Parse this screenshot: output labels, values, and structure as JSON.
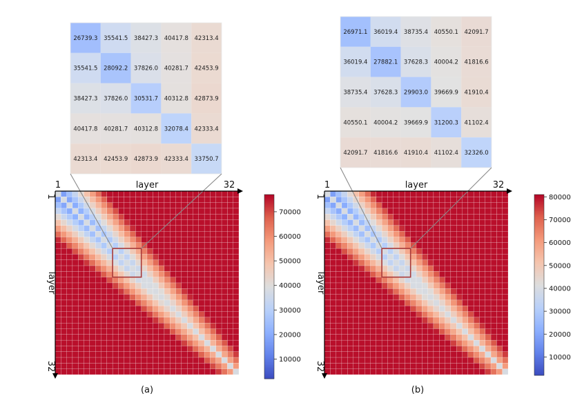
{
  "chart_data": [
    {
      "type": "heatmap",
      "caption": "(a)",
      "xlabel": "layer",
      "ylabel": "layer",
      "x_ticks": [
        "1",
        "32"
      ],
      "y_ticks": [
        "1",
        "32"
      ],
      "size": 32,
      "colormap": "coolwarm",
      "vmin": 2000,
      "vmax": 77000,
      "colorbar_ticks": [
        10000,
        20000,
        30000,
        40000,
        50000,
        60000,
        70000
      ],
      "zoom_range": [
        10,
        14
      ],
      "zoom_values": [
        [
          "26739.3",
          "35541.5",
          "38427.3",
          "40417.8",
          "42313.4"
        ],
        [
          "35541.5",
          "28092.2",
          "37826.0",
          "40281.7",
          "42453.9"
        ],
        [
          "38427.3",
          "37826.0",
          "30531.7",
          "40312.8",
          "42873.9"
        ],
        [
          "40417.8",
          "40281.7",
          "40312.8",
          "32078.4",
          "42333.4"
        ],
        [
          "42313.4",
          "42453.9",
          "42873.9",
          "42333.4",
          "33750.7"
        ]
      ]
    },
    {
      "type": "heatmap",
      "caption": "(b)",
      "xlabel": "layer",
      "ylabel": "layer",
      "x_ticks": [
        "1",
        "32"
      ],
      "y_ticks": [
        "1",
        "32"
      ],
      "size": 32,
      "colormap": "coolwarm",
      "vmin": 2000,
      "vmax": 81000,
      "colorbar_ticks": [
        10000,
        20000,
        30000,
        40000,
        50000,
        60000,
        70000,
        80000
      ],
      "zoom_range": [
        10,
        14
      ],
      "zoom_values": [
        [
          "26971.1",
          "36019.4",
          "38735.4",
          "40550.1",
          "42091.7"
        ],
        [
          "36019.4",
          "27882.1",
          "37628.3",
          "40004.2",
          "41816.6"
        ],
        [
          "38735.4",
          "37628.3",
          "29903.0",
          "39669.9",
          "41910.4"
        ],
        [
          "40550.1",
          "40004.2",
          "39669.9",
          "31200.3",
          "41102.4"
        ],
        [
          "42091.7",
          "41816.6",
          "41910.4",
          "41102.4",
          "32326.0"
        ]
      ]
    }
  ]
}
